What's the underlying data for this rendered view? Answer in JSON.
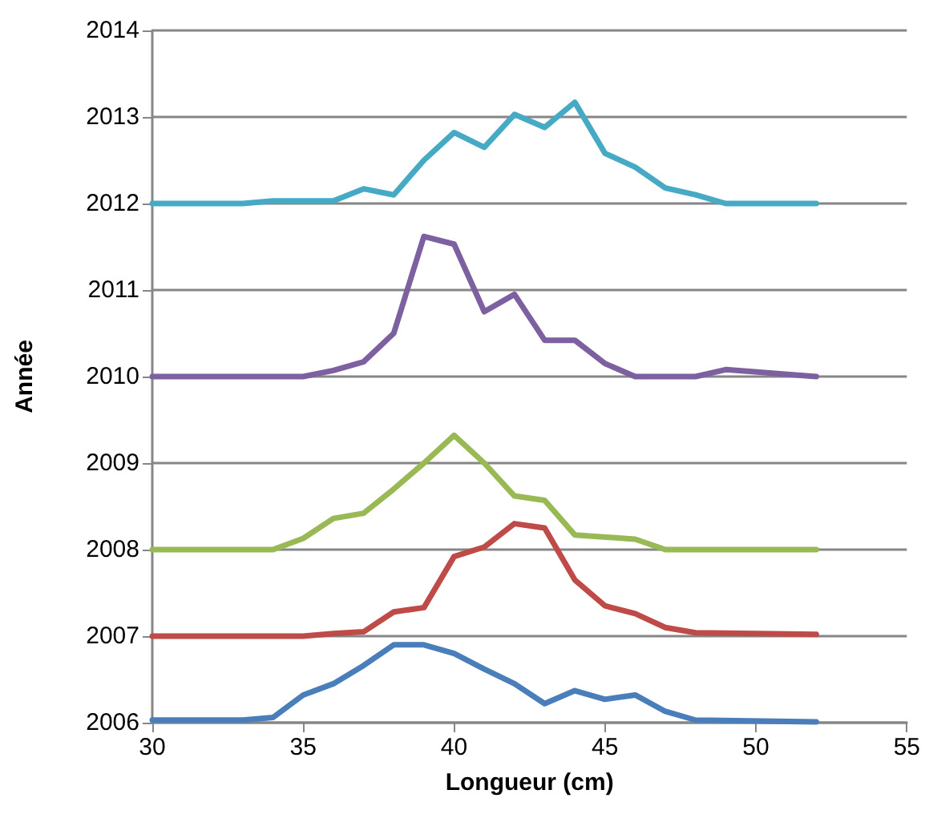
{
  "chart_data": {
    "type": "line",
    "xlabel": "Longueur (cm)",
    "ylabel": "Année",
    "xlim": [
      30,
      55
    ],
    "xticks": [
      30,
      35,
      40,
      45,
      50,
      55
    ],
    "ylim": [
      2006,
      2014
    ],
    "yticks": [
      2006,
      2007,
      2008,
      2009,
      2010,
      2011,
      2012,
      2013,
      2014
    ],
    "grid": "y",
    "marker": "none",
    "line_style": "solid",
    "series": [
      {
        "color": "#4a7ebb",
        "x": [
          30,
          33,
          34,
          35,
          36,
          37,
          38,
          39,
          40,
          41,
          42,
          43,
          44,
          45,
          46,
          47,
          48,
          52
        ],
        "values": [
          2006.03,
          2006.03,
          2006.06,
          2006.32,
          2006.45,
          2006.66,
          2006.9,
          2006.9,
          2006.8,
          2006.62,
          2006.45,
          2006.22,
          2006.37,
          2006.27,
          2006.32,
          2006.13,
          2006.03,
          2006.01
        ]
      },
      {
        "color": "#be4b48",
        "x": [
          30,
          35,
          36,
          37,
          38,
          39,
          40,
          41,
          42,
          43,
          44,
          45,
          46,
          47,
          48,
          52
        ],
        "values": [
          2007,
          2007,
          2007.03,
          2007.05,
          2007.28,
          2007.33,
          2007.92,
          2008.03,
          2008.3,
          2008.25,
          2007.65,
          2007.35,
          2007.26,
          2007.1,
          2007.04,
          2007.02
        ]
      },
      {
        "color": "#98b954",
        "x": [
          30,
          34,
          35,
          36,
          37,
          38,
          39,
          40,
          41,
          42,
          43,
          44,
          46,
          47,
          52
        ],
        "values": [
          2008,
          2008,
          2008.13,
          2008.36,
          2008.42,
          2008.7,
          2009.0,
          2009.32,
          2009.0,
          2008.62,
          2008.57,
          2008.17,
          2008.12,
          2008.0,
          2008.0
        ]
      },
      {
        "color": "#7d60a0",
        "x": [
          30,
          35,
          36,
          37,
          38,
          39,
          40,
          41,
          42,
          43,
          44,
          45,
          46,
          48,
          49,
          52
        ],
        "values": [
          2010,
          2010,
          2010.07,
          2010.17,
          2010.5,
          2011.62,
          2011.53,
          2010.75,
          2010.95,
          2010.42,
          2010.42,
          2010.15,
          2010.0,
          2010.0,
          2010.08,
          2010.0
        ]
      },
      {
        "color": "#46aac5",
        "x": [
          30,
          33,
          34,
          36,
          37,
          38,
          39,
          40,
          41,
          42,
          43,
          44,
          45,
          46,
          47,
          48,
          49,
          52
        ],
        "values": [
          2012,
          2012,
          2012.03,
          2012.03,
          2012.17,
          2012.1,
          2012.5,
          2012.82,
          2012.65,
          2013.03,
          2012.88,
          2013.17,
          2012.58,
          2012.42,
          2012.18,
          2012.1,
          2012.0,
          2012.0
        ]
      }
    ]
  }
}
